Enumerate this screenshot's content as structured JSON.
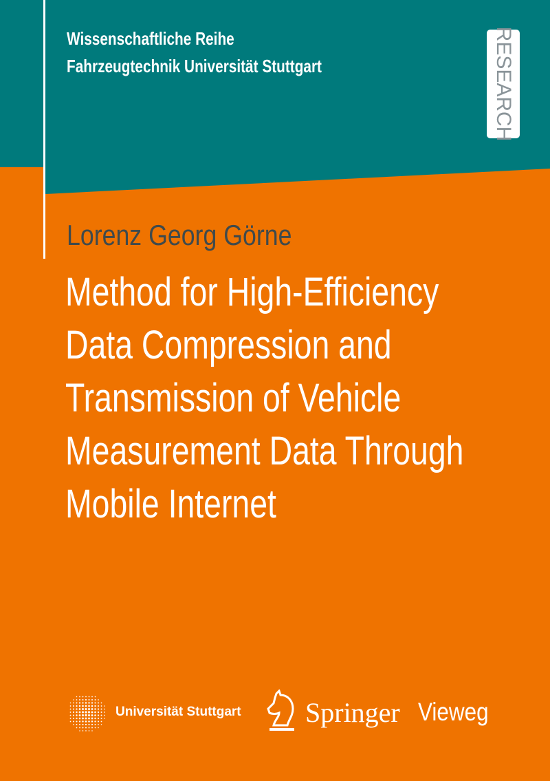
{
  "colors": {
    "teal": "#007a7c",
    "orange": "#ef7300",
    "badge_text": "#8a9499",
    "author_text": "#3f4a4c"
  },
  "series": {
    "line1": "Wissenschaftliche Reihe",
    "line2": "Fahrzeugtechnik Universität Stuttgart"
  },
  "badge": "RESEARCH",
  "author": "Lorenz Georg Görne",
  "title": {
    "lines": [
      "Method for High-Efficiency",
      "Data Compression and",
      "Transmission of Vehicle",
      "Measurement Data Through",
      "Mobile Internet"
    ]
  },
  "logos": {
    "university": "Universität Stuttgart",
    "publisher_main": "Springer",
    "publisher_sub": "Vieweg"
  }
}
